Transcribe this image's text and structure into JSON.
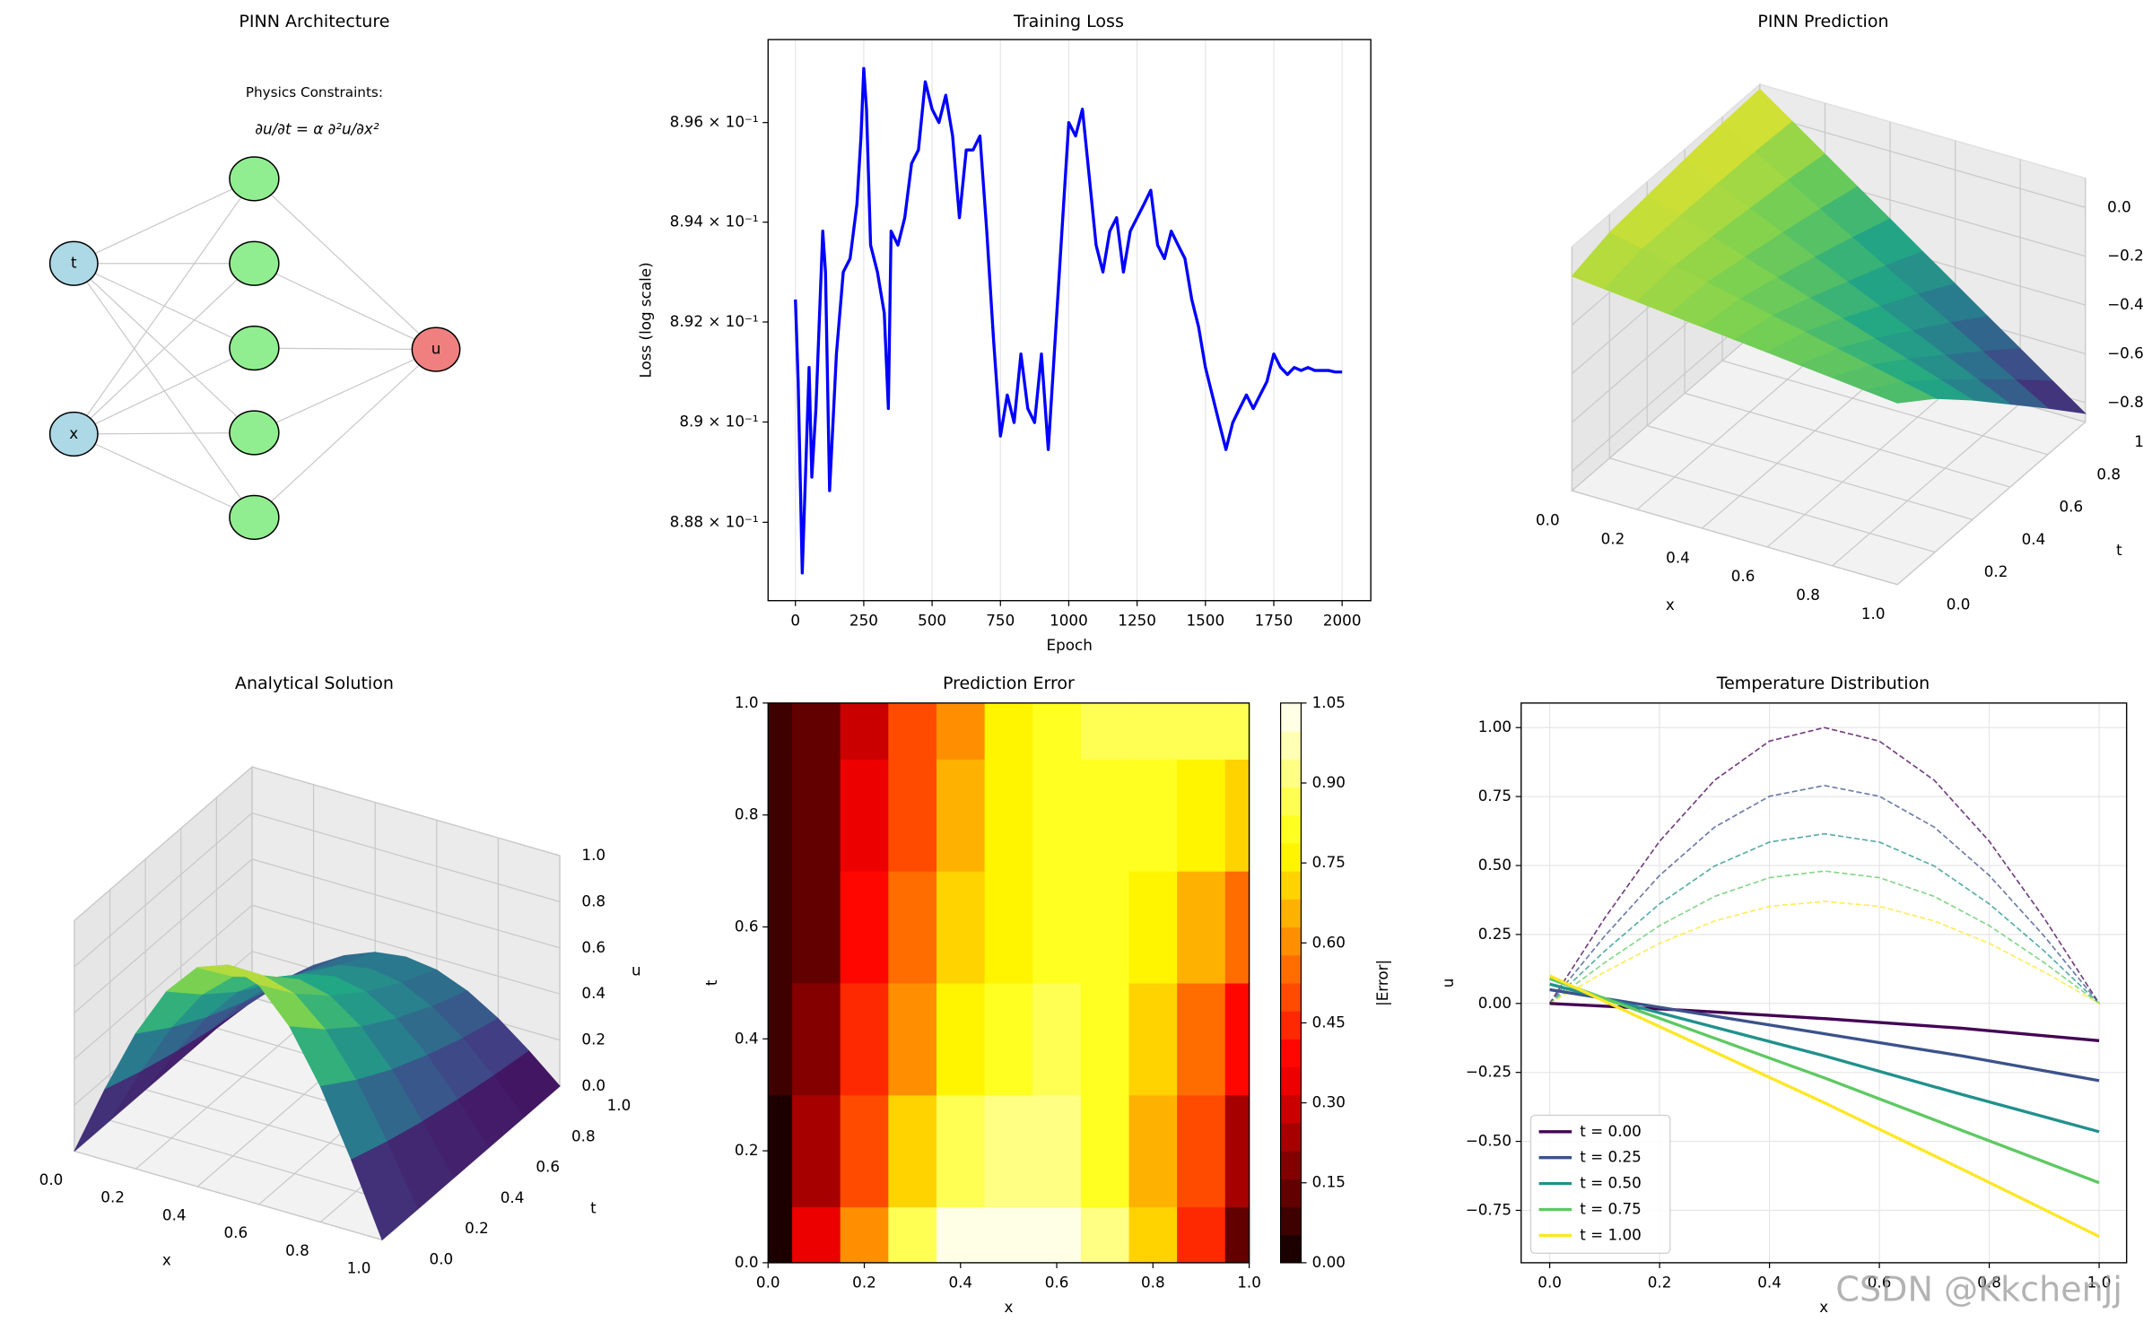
{
  "chart_data": [
    {
      "type": "network",
      "title": "PINN Architecture",
      "annotation": "Physics Constraints:",
      "equation": "∂u/∂t = α ∂²u/∂x²",
      "inputs": [
        "t",
        "x"
      ],
      "hidden_units": 5,
      "output": "u"
    },
    {
      "type": "line",
      "title": "Training Loss",
      "xlabel": "Epoch",
      "ylabel": "Loss (log scale)",
      "log_y": true,
      "grid_axis": "x",
      "color": "#0000ff",
      "x": [
        0,
        10,
        25,
        40,
        50,
        60,
        75,
        100,
        110,
        125,
        150,
        175,
        200,
        225,
        240,
        250,
        260,
        275,
        300,
        325,
        340,
        350,
        375,
        400,
        425,
        450,
        475,
        500,
        525,
        550,
        575,
        600,
        625,
        650,
        675,
        700,
        725,
        750,
        775,
        800,
        825,
        850,
        875,
        900,
        925,
        950,
        975,
        1000,
        1025,
        1050,
        1075,
        1100,
        1125,
        1150,
        1175,
        1200,
        1225,
        1250,
        1275,
        1300,
        1325,
        1350,
        1375,
        1400,
        1425,
        1450,
        1475,
        1500,
        1525,
        1550,
        1575,
        1600,
        1625,
        1650,
        1675,
        1700,
        1725,
        1750,
        1775,
        1800,
        1825,
        1850,
        1875,
        1900,
        1925,
        1950,
        1975,
        2000
      ],
      "values": [
        0.89245,
        0.89081,
        0.88699,
        0.88945,
        0.89109,
        0.8889,
        0.89027,
        0.89382,
        0.893,
        0.88863,
        0.89136,
        0.893,
        0.89327,
        0.89436,
        0.89573,
        0.89709,
        0.89627,
        0.89354,
        0.893,
        0.89218,
        0.89027,
        0.89382,
        0.89354,
        0.89409,
        0.89518,
        0.89545,
        0.89682,
        0.89627,
        0.896,
        0.89655,
        0.89573,
        0.89409,
        0.89545,
        0.89545,
        0.89573,
        0.89382,
        0.89163,
        0.88972,
        0.89054,
        0.88999,
        0.89136,
        0.89027,
        0.88999,
        0.89136,
        0.88945,
        0.89163,
        0.89382,
        0.896,
        0.89573,
        0.89627,
        0.89491,
        0.89354,
        0.893,
        0.89382,
        0.89409,
        0.893,
        0.89382,
        0.89409,
        0.89436,
        0.89464,
        0.89354,
        0.89327,
        0.89382,
        0.89354,
        0.89327,
        0.89245,
        0.8919,
        0.89109,
        0.89054,
        0.88999,
        0.88945,
        0.88999,
        0.89027,
        0.89054,
        0.89027,
        0.89054,
        0.89081,
        0.89136,
        0.89109,
        0.89095,
        0.89109,
        0.89103,
        0.89109,
        0.89103,
        0.89103,
        0.89103,
        0.891,
        0.891
      ],
      "xlim": [
        -100,
        2105
      ],
      "ylim": [
        0.88644,
        0.89767
      ],
      "xticks": [
        0,
        250,
        500,
        750,
        1000,
        1250,
        1500,
        1750,
        2000
      ],
      "yticks": [
        {
          "value": 0.888,
          "label": "8.88 × 10⁻¹"
        },
        {
          "value": 0.89,
          "label": "8.9 × 10⁻¹"
        },
        {
          "value": 0.892,
          "label": "8.92 × 10⁻¹"
        },
        {
          "value": 0.894,
          "label": "8.94 × 10⁻¹"
        },
        {
          "value": 0.896,
          "label": "8.96 × 10⁻¹"
        }
      ]
    },
    {
      "type": "surface3d",
      "title": "PINN Prediction",
      "xlabel": "x",
      "ylabel": "t",
      "colormap": "viridis",
      "x": [
        0,
        0.1,
        0.2,
        0.3,
        0.4,
        0.5,
        0.6,
        0.7,
        0.8,
        0.9,
        1
      ],
      "t": [
        0,
        0.2,
        0.4,
        0.6,
        0.8,
        1
      ],
      "z": [
        [
          0,
          -0.014,
          -0.027,
          -0.041,
          -0.054,
          -0.068,
          -0.081,
          -0.095,
          -0.108,
          -0.122,
          -0.135
        ],
        [
          0.045,
          0.016,
          -0.014,
          -0.044,
          -0.073,
          -0.103,
          -0.132,
          -0.162,
          -0.191,
          -0.221,
          -0.25
        ],
        [
          0.062,
          0.017,
          -0.028,
          -0.074,
          -0.119,
          -0.164,
          -0.209,
          -0.254,
          -0.3,
          -0.345,
          -0.39
        ],
        [
          0.078,
          0.016,
          -0.046,
          -0.107,
          -0.169,
          -0.231,
          -0.293,
          -0.355,
          -0.416,
          -0.478,
          -0.54
        ],
        [
          0.092,
          0.014,
          -0.064,
          -0.143,
          -0.221,
          -0.299,
          -0.377,
          -0.455,
          -0.534,
          -0.612,
          -0.69
        ],
        [
          0.1,
          0.006,
          -0.089,
          -0.184,
          -0.278,
          -0.373,
          -0.467,
          -0.562,
          -0.656,
          -0.751,
          -0.845
        ]
      ],
      "zlim": [
        -0.88,
        0.12
      ],
      "xticks": [
        {
          "value": 0,
          "label": "0.0"
        },
        0.2,
        0.4,
        0.6,
        0.8,
        {
          "value": 1,
          "label": "1.0"
        }
      ],
      "yticks": [
        {
          "value": 0,
          "label": "0.0"
        },
        0.2,
        0.4,
        0.6,
        0.8,
        {
          "value": 1,
          "label": "1.0"
        }
      ],
      "zticks": [
        {
          "value": 0,
          "label": "0.0"
        },
        {
          "value": -0.2,
          "label": "−0.2"
        },
        {
          "value": -0.4,
          "label": "−0.4"
        },
        {
          "value": -0.6,
          "label": "−0.6"
        },
        {
          "value": -0.8,
          "label": "−0.8"
        }
      ]
    },
    {
      "type": "surface3d",
      "title": "Analytical Solution",
      "xlabel": "x",
      "ylabel": "t",
      "zlabel": "u",
      "colormap": "viridis",
      "x": [
        0,
        0.1,
        0.2,
        0.3,
        0.4,
        0.5,
        0.6,
        0.7,
        0.8,
        0.9,
        1
      ],
      "t": [
        0,
        0.2,
        0.4,
        0.6,
        0.8,
        1
      ],
      "z": [
        [
          0,
          0.309,
          0.588,
          0.809,
          0.951,
          1,
          0.951,
          0.809,
          0.588,
          0.309,
          0
        ],
        [
          0,
          0.253,
          0.482,
          0.663,
          0.779,
          0.819,
          0.779,
          0.663,
          0.482,
          0.253,
          0
        ],
        [
          0,
          0.207,
          0.394,
          0.542,
          0.637,
          0.67,
          0.637,
          0.542,
          0.394,
          0.207,
          0
        ],
        [
          0,
          0.17,
          0.323,
          0.444,
          0.522,
          0.549,
          0.522,
          0.444,
          0.323,
          0.17,
          0
        ],
        [
          0,
          0.139,
          0.264,
          0.363,
          0.427,
          0.449,
          0.427,
          0.363,
          0.264,
          0.139,
          0
        ],
        [
          0,
          0.114,
          0.216,
          0.297,
          0.35,
          0.368,
          0.35,
          0.297,
          0.216,
          0.114,
          0
        ]
      ],
      "zlim": [
        0,
        1
      ],
      "xticks": [
        {
          "value": 0,
          "label": "0.0"
        },
        0.2,
        0.4,
        0.6,
        0.8,
        {
          "value": 1,
          "label": "1.0"
        }
      ],
      "yticks": [
        {
          "value": 0,
          "label": "0.0"
        },
        0.2,
        0.4,
        0.6,
        0.8,
        {
          "value": 1,
          "label": "1.0"
        }
      ],
      "zticks": [
        {
          "value": 0,
          "label": "0.0"
        },
        0.2,
        0.4,
        0.6,
        0.8,
        {
          "value": 1,
          "label": "1.0"
        }
      ]
    },
    {
      "type": "heatmap",
      "title": "Prediction Error",
      "xlabel": "x",
      "ylabel": "t",
      "colorbar_label": "|Error|",
      "colormap": "hot",
      "levels": 21,
      "x": [
        0,
        0.1,
        0.2,
        0.3,
        0.4,
        0.5,
        0.6,
        0.7,
        0.8,
        0.9,
        1
      ],
      "t": [
        0,
        0.2,
        0.4,
        0.6,
        0.8,
        1
      ],
      "z": [
        [
          0,
          0.323,
          0.615,
          0.85,
          1.005,
          1.068,
          1.032,
          0.904,
          0.696,
          0.431,
          0.135
        ],
        [
          0.045,
          0.237,
          0.496,
          0.707,
          0.852,
          0.922,
          0.911,
          0.825,
          0.673,
          0.474,
          0.25
        ],
        [
          0.062,
          0.19,
          0.422,
          0.616,
          0.756,
          0.834,
          0.846,
          0.796,
          0.694,
          0.552,
          0.39
        ],
        [
          0.078,
          0.154,
          0.369,
          0.551,
          0.691,
          0.78,
          0.815,
          0.799,
          0.739,
          0.648,
          0.54
        ],
        [
          0.092,
          0.125,
          0.328,
          0.506,
          0.648,
          0.748,
          0.804,
          0.818,
          0.798,
          0.751,
          0.69
        ],
        [
          0.1,
          0.108,
          0.305,
          0.481,
          0.628,
          0.741,
          0.817,
          0.859,
          0.872,
          0.865,
          0.845
        ]
      ],
      "xlim": [
        0,
        1
      ],
      "ylim": [
        0,
        1
      ],
      "clim": [
        0,
        1.05
      ],
      "xticks": [
        {
          "value": 0,
          "label": "0.0"
        },
        0.2,
        0.4,
        0.6,
        0.8,
        {
          "value": 1,
          "label": "1.0"
        }
      ],
      "yticks": [
        {
          "value": 0,
          "label": "0.0"
        },
        0.2,
        0.4,
        0.6,
        0.8,
        {
          "value": 1,
          "label": "1.0"
        }
      ],
      "colorbar_ticks": [
        {
          "value": 0,
          "label": "0.00"
        },
        {
          "value": 0.15,
          "label": "0.15"
        },
        {
          "value": 0.3,
          "label": "0.30"
        },
        {
          "value": 0.45,
          "label": "0.45"
        },
        {
          "value": 0.6,
          "label": "0.60"
        },
        {
          "value": 0.75,
          "label": "0.75"
        },
        {
          "value": 0.9,
          "label": "0.90"
        },
        {
          "value": 1.05,
          "label": "1.05"
        }
      ]
    },
    {
      "type": "multiline",
      "title": "Temperature Distribution",
      "xlabel": "x",
      "ylabel": "u",
      "grid": true,
      "legend": "lower left",
      "x": [
        0,
        0.25,
        0.5,
        0.75,
        1
      ],
      "series": [
        {
          "name": "t = 0.00",
          "color": "#440154",
          "values": [
            0,
            -0.025,
            -0.055,
            -0.09,
            -0.135
          ]
        },
        {
          "name": "t = 0.25",
          "color": "#3b528b",
          "values": [
            0.05,
            -0.03,
            -0.11,
            -0.19,
            -0.28
          ]
        },
        {
          "name": "t = 0.50",
          "color": "#21918c",
          "values": [
            0.07,
            -0.06,
            -0.19,
            -0.33,
            -0.465
          ]
        },
        {
          "name": "t = 0.75",
          "color": "#5ec962",
          "values": [
            0.09,
            -0.09,
            -0.27,
            -0.46,
            -0.65
          ]
        },
        {
          "name": "t = 1.00",
          "color": "#fde725",
          "values": [
            0.1,
            -0.13,
            -0.36,
            -0.6,
            -0.845
          ]
        }
      ],
      "reference_x": [
        0,
        0.1,
        0.2,
        0.3,
        0.4,
        0.5,
        0.6,
        0.7,
        0.8,
        0.9,
        1
      ],
      "reference_series": [
        {
          "color": "#440154",
          "values": [
            0,
            0.309,
            0.588,
            0.809,
            0.951,
            1,
            0.951,
            0.809,
            0.588,
            0.309,
            0
          ]
        },
        {
          "color": "#3b528b",
          "values": [
            0,
            0.244,
            0.464,
            0.639,
            0.751,
            0.79,
            0.751,
            0.639,
            0.464,
            0.244,
            0
          ]
        },
        {
          "color": "#21918c",
          "values": [
            0,
            0.19,
            0.361,
            0.498,
            0.585,
            0.615,
            0.585,
            0.498,
            0.361,
            0.19,
            0
          ]
        },
        {
          "color": "#5ec962",
          "values": [
            0,
            0.148,
            0.282,
            0.388,
            0.456,
            0.48,
            0.456,
            0.388,
            0.282,
            0.148,
            0
          ]
        },
        {
          "color": "#fde725",
          "values": [
            0,
            0.114,
            0.218,
            0.299,
            0.352,
            0.37,
            0.352,
            0.299,
            0.218,
            0.114,
            0
          ]
        }
      ],
      "xlim": [
        -0.052,
        1.05
      ],
      "ylim": [
        -0.94,
        1.089
      ],
      "xticks": [
        {
          "value": 0,
          "label": "0.0"
        },
        0.2,
        0.4,
        0.6,
        0.8,
        {
          "value": 1,
          "label": "1.0"
        }
      ],
      "yticks": [
        {
          "value": -0.75,
          "label": "−0.75"
        },
        {
          "value": -0.5,
          "label": "−0.50"
        },
        {
          "value": -0.25,
          "label": "−0.25"
        },
        {
          "value": 0,
          "label": "0.00"
        },
        {
          "value": 0.25,
          "label": "0.25"
        },
        {
          "value": 0.5,
          "label": "0.50"
        },
        {
          "value": 0.75,
          "label": "0.75"
        },
        {
          "value": 1,
          "label": "1.00"
        }
      ]
    }
  ],
  "watermark": "CSDN @Kkchenjj"
}
